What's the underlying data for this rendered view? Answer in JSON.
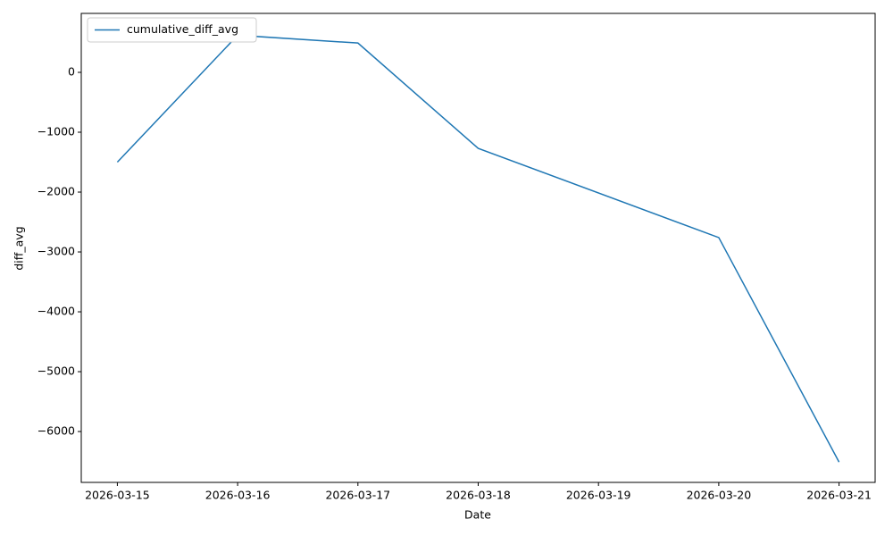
{
  "chart_data": {
    "type": "line",
    "x_label": "Date",
    "y_label": "diff_avg",
    "x": [
      "2026-03-15",
      "2026-03-16",
      "2026-03-17",
      "2026-03-18",
      "2026-03-20",
      "2026-03-21"
    ],
    "series": [
      {
        "name": "cumulative_diff_avg",
        "color": "#1f77b4",
        "values": [
          -1500,
          620,
          490,
          -1270,
          -2760,
          -6510
        ]
      }
    ],
    "xlim": [
      "2026-03-14T16:48",
      "2026-03-21T07:12"
    ],
    "xticks": [
      "2026-03-15",
      "2026-03-16",
      "2026-03-17",
      "2026-03-18",
      "2026-03-19",
      "2026-03-20",
      "2026-03-21"
    ],
    "ylim": [
      -6850,
      985
    ],
    "yticks": [
      {
        "value": -6000,
        "label": "−6000"
      },
      {
        "value": -5000,
        "label": "−5000"
      },
      {
        "value": -4000,
        "label": "−4000"
      },
      {
        "value": -3000,
        "label": "−3000"
      },
      {
        "value": -2000,
        "label": "−2000"
      },
      {
        "value": -1000,
        "label": "−1000"
      },
      0
    ],
    "legend": "upper left",
    "grid": false
  }
}
